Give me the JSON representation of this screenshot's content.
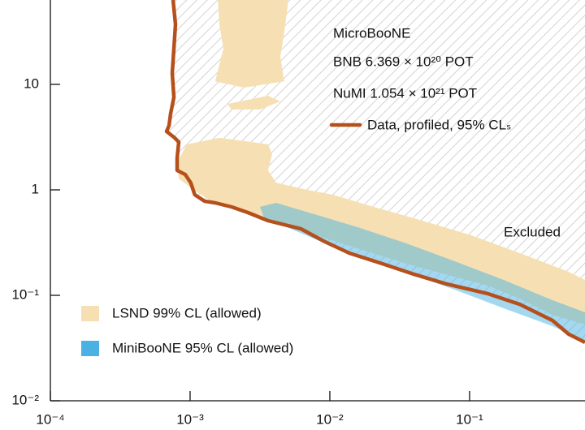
{
  "chart_data": {
    "type": "region",
    "xscale": "log",
    "yscale": "log",
    "xlim": [
      0.0001,
      0.67
    ],
    "ylim": [
      0.01,
      63.1
    ],
    "xticks": [
      {
        "value": 0.0001,
        "label": "10⁻⁴"
      },
      {
        "value": 0.001,
        "label": "10⁻³"
      },
      {
        "value": 0.01,
        "label": "10⁻²"
      },
      {
        "value": 0.1,
        "label": "10⁻¹"
      }
    ],
    "yticks": [
      {
        "value": 0.01,
        "label": "10⁻²"
      },
      {
        "value": 0.1,
        "label": "10⁻¹"
      },
      1,
      10
    ],
    "annotations": [
      "MicroBooNE",
      "BNB 6.369 × 10²⁰ POT",
      "NuMI 1.054 × 10²¹ POT",
      "Excluded"
    ],
    "excluded_hatch": true,
    "series": [
      {
        "name": "LSND 99% CL (allowed)",
        "color": "#f6e0b3",
        "kind": "area",
        "regions": [
          {
            "x": [
              0.000807,
              0.000948,
              0.00162,
              0.00277,
              0.00361,
              0.00386,
              0.00361,
              0.00413,
              0.00618,
              0.0105,
              0.0206,
              0.046,
              0.103,
              0.229,
              0.512,
              0.67,
              0.67,
              0.392,
              0.229,
              0.134,
              0.0352,
              0.0121,
              0.00541,
              0.00242,
              0.00142,
              0.00108,
              0.000829
            ],
            "y": [
              1.83,
              2.7,
              3.11,
              2.84,
              2.7,
              2.18,
              1.53,
              1.17,
              1.03,
              0.899,
              0.689,
              0.51,
              0.371,
              0.251,
              0.167,
              0.14,
              0.0529,
              0.0653,
              0.0932,
              0.124,
              0.2,
              0.311,
              0.443,
              0.653,
              0.78,
              0.983,
              1.28
            ]
          },
          {
            "x": [
              0.00158,
              0.00505,
              0.00472,
              0.00442,
              0.00472,
              0.00242,
              0.00151,
              0.00173,
              0.00162
            ],
            "y": [
              63.1,
              63.1,
              31.0,
              18.3,
              10.7,
              9.31,
              10.7,
              21.8,
              37.1
            ]
          },
          {
            "x": [
              0.00185,
              0.00361,
              0.00442,
              0.00316,
              0.00198
            ],
            "y": [
              6.53,
              7.8,
              6.89,
              5.78,
              5.78
            ]
          }
        ]
      },
      {
        "name": "MiniBooNE 95% CL (allowed)",
        "color": "#4ab2e2",
        "kind": "area",
        "regions": [
          {
            "x": [
              0.00316,
              0.00413,
              0.00706,
              0.0158,
              0.0352,
              0.0785,
              0.175,
              0.392,
              0.67,
              0.67,
              0.392,
              0.175,
              0.0785,
              0.0352,
              0.0158,
              0.00923,
              0.00541,
              0.00338
            ],
            "y": [
              0.689,
              0.753,
              0.609,
              0.443,
              0.311,
              0.21,
              0.14,
              0.0899,
              0.069,
              0.0371,
              0.051,
              0.0754,
              0.113,
              0.164,
              0.234,
              0.311,
              0.42,
              0.547
            ]
          }
        ]
      },
      {
        "name": "Data, profiled, 95% CLₛ",
        "color": "#b5501c",
        "kind": "line",
        "x": [
          0.000755,
          0.000786,
          0.000765,
          0.000745,
          0.000765,
          0.000725,
          0.000706,
          0.000678,
          0.000776,
          0.000829,
          0.000807,
          0.000807,
          0.000922,
          0.00101,
          0.00108,
          0.00127,
          0.00151,
          0.00198,
          0.00259,
          0.00361,
          0.00618,
          0.00923,
          0.0138,
          0.0236,
          0.0403,
          0.0687,
          0.134,
          0.229,
          0.392,
          0.512,
          0.67
        ],
        "y": [
          63.1,
          37.1,
          21.8,
          12.8,
          7.54,
          5.28,
          4.06,
          3.58,
          3.11,
          2.84,
          2.0,
          1.53,
          1.4,
          1.17,
          0.899,
          0.78,
          0.753,
          0.689,
          0.609,
          0.51,
          0.428,
          0.322,
          0.251,
          0.2,
          0.158,
          0.128,
          0.104,
          0.0822,
          0.0578,
          0.0428,
          0.0358
        ]
      }
    ]
  }
}
